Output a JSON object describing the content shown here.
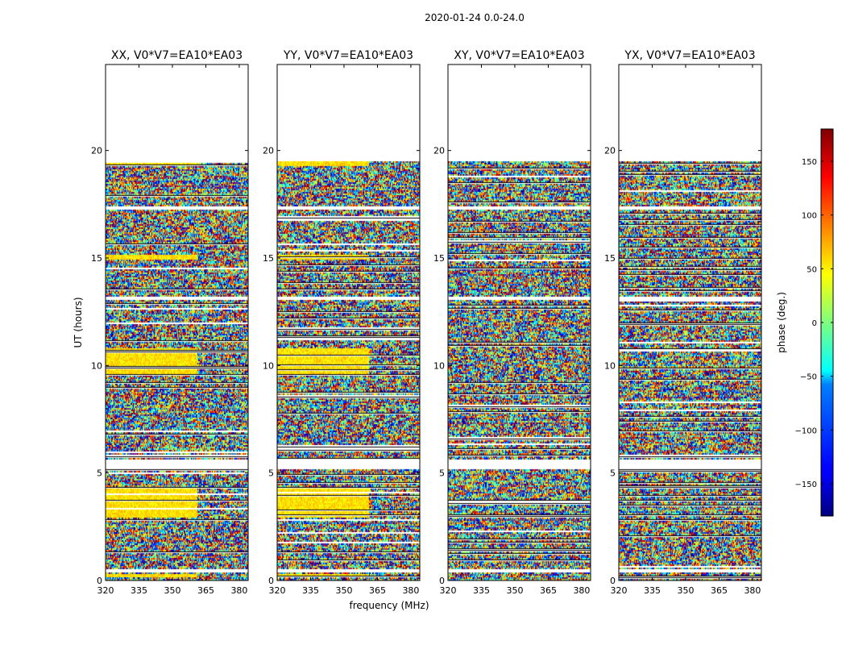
{
  "chart_data": {
    "type": "heatmap",
    "suptitle": "2020-01-24 0.0-24.0",
    "xlabel": "frequency (MHz)",
    "ylabel": "UT (hours)",
    "xlim": [
      320,
      384
    ],
    "ylim": [
      0,
      24
    ],
    "xticks": [
      320,
      335,
      350,
      365,
      380
    ],
    "yticks": [
      0,
      5,
      10,
      15,
      20
    ],
    "panels": [
      {
        "title": "XX, V0*V7=EA10*EA03",
        "pol": "XX",
        "strong_bands": [
          [
            0.2,
            0.35
          ],
          [
            3.0,
            4.3
          ],
          [
            9.6,
            10.8
          ],
          [
            15.0,
            15.2
          ],
          [
            19.3,
            19.5
          ]
        ]
      },
      {
        "title": "YY, V0*V7=EA10*EA03",
        "pol": "YY",
        "strong_bands": [
          [
            0.2,
            0.35
          ],
          [
            3.0,
            4.3
          ],
          [
            9.6,
            10.8
          ],
          [
            15.0,
            15.2
          ],
          [
            19.3,
            19.5
          ]
        ]
      },
      {
        "title": "XY, V0*V7=EA10*EA03",
        "pol": "XY",
        "strong_bands": []
      },
      {
        "title": "YX, V0*V7=EA10*EA03",
        "pol": "YX",
        "strong_bands": []
      }
    ],
    "data_extent_hours": [
      0.0,
      19.5
    ],
    "gap_bands_hours": [
      [
        0.4,
        0.6
      ],
      [
        5.2,
        5.7
      ],
      [
        17.3,
        17.4
      ],
      [
        13.1,
        13.2
      ]
    ],
    "colorbar": {
      "label": "phase (deg.)",
      "range": [
        -180,
        180
      ],
      "ticks": [
        -150,
        -100,
        -50,
        0,
        50,
        100,
        150
      ],
      "tick_labels": [
        "−150",
        "−100",
        "−50",
        "0",
        "50",
        "100",
        "150"
      ],
      "colormap": "jet"
    }
  }
}
